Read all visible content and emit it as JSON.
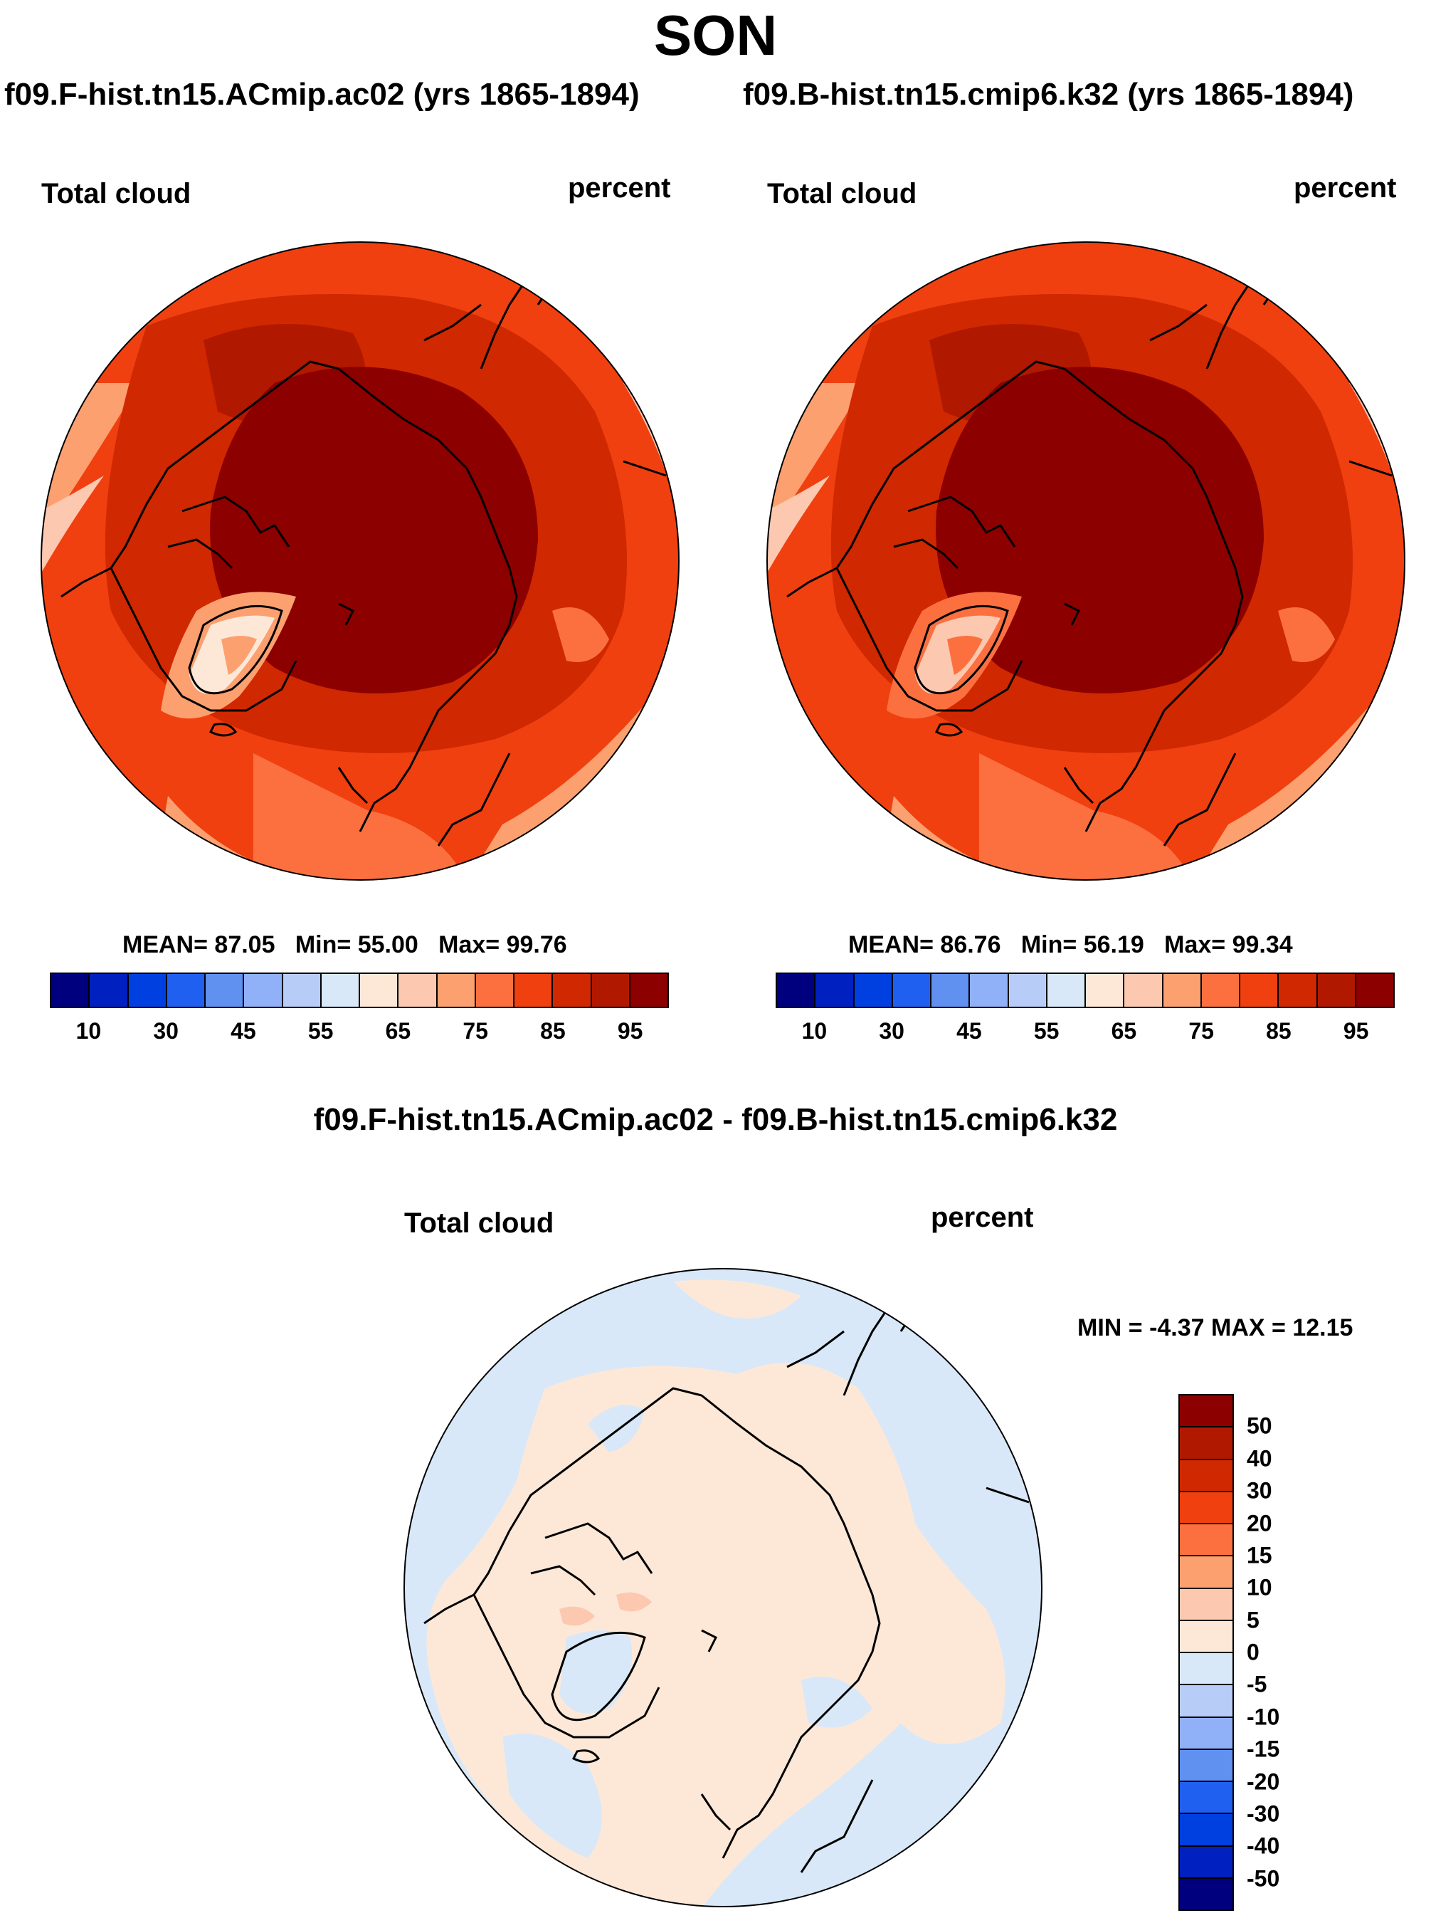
{
  "title": "SON",
  "panels": [
    {
      "name": "f09.F-hist.tn15.ACmip.ac02 (yrs 1865-1894)",
      "variable": "Total cloud",
      "units": "percent",
      "stats": {
        "mean_label": "MEAN=",
        "mean": "87.05",
        "min_label": "Min=",
        "min": "55.00",
        "max_label": "Max=",
        "max": "99.76"
      }
    },
    {
      "name": "f09.B-hist.tn15.cmip6.k32 (yrs 1865-1894)",
      "variable": "Total cloud",
      "units": "percent",
      "stats": {
        "mean_label": "MEAN=",
        "mean": "86.76",
        "min_label": "Min=",
        "min": "56.19",
        "max_label": "Max=",
        "max": "99.34"
      }
    }
  ],
  "main_colorbar": {
    "colors": [
      "#00007f",
      "#0020c0",
      "#0040e0",
      "#2060f0",
      "#6090f0",
      "#90b0f8",
      "#b8ccf8",
      "#d8e8f8",
      "#fde8d8",
      "#fcc8b0",
      "#fca070",
      "#fc7040",
      "#f04010",
      "#d02800",
      "#b01800",
      "#8c0000"
    ],
    "ticks": [
      "10",
      "30",
      "45",
      "55",
      "65",
      "75",
      "85",
      "95"
    ]
  },
  "diff": {
    "title": "f09.F-hist.tn15.ACmip.ac02 - f09.B-hist.tn15.cmip6.k32",
    "variable": "Total cloud",
    "units": "percent",
    "minmax": "MIN = -4.37 MAX = 12.15",
    "colorbar": {
      "colors": [
        "#8c0000",
        "#b01800",
        "#d02800",
        "#f04010",
        "#fc7040",
        "#fca070",
        "#fcc8b0",
        "#fde8d8",
        "#d8e8f8",
        "#b8ccf8",
        "#90b0f8",
        "#6090f0",
        "#2060f0",
        "#0040e0",
        "#0020c0",
        "#00007f"
      ],
      "ticks": [
        "50",
        "40",
        "30",
        "20",
        "15",
        "10",
        "5",
        "0",
        "-5",
        "-10",
        "-15",
        "-20",
        "-30",
        "-40",
        "-50"
      ]
    }
  }
}
